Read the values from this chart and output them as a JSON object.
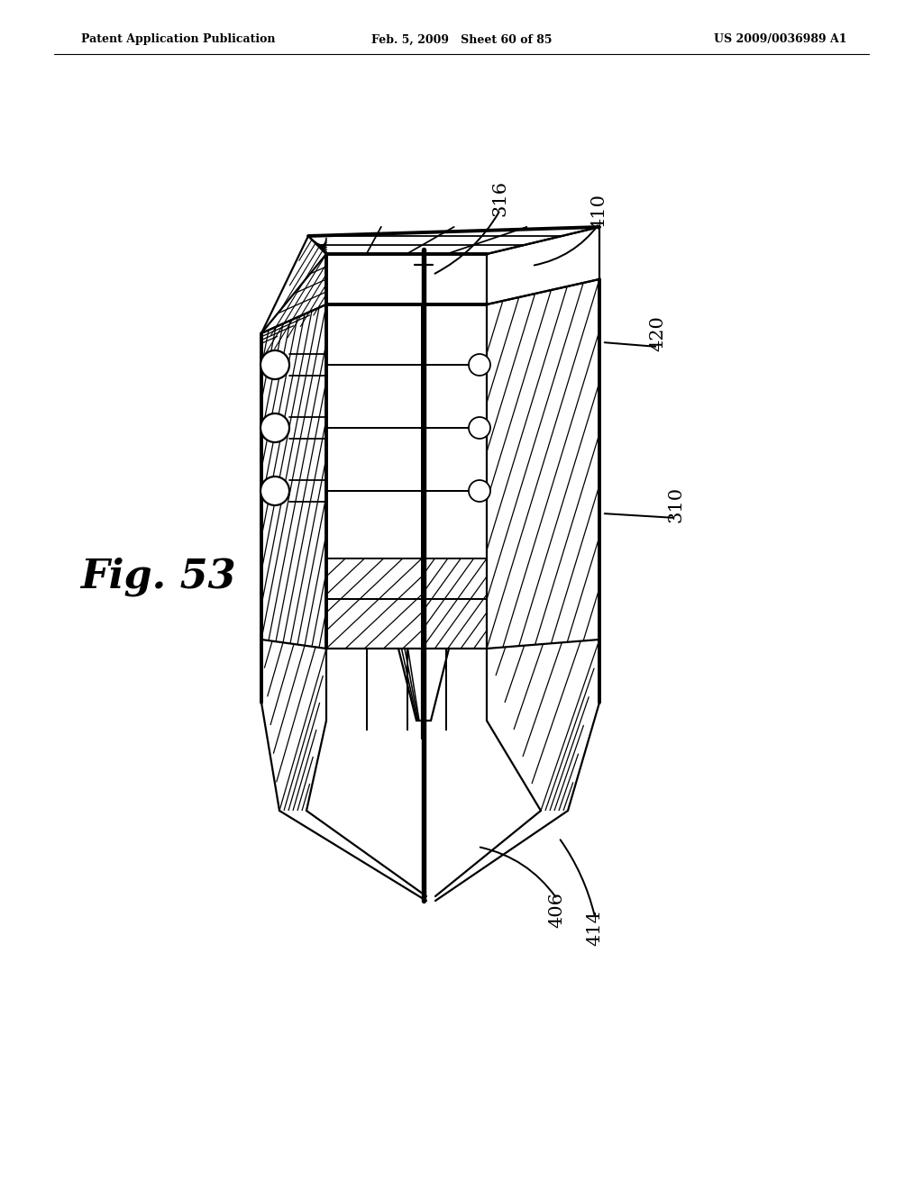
{
  "background_color": "#ffffff",
  "header_left": "Patent Application Publication",
  "header_center": "Feb. 5, 2009   Sheet 60 of 85",
  "header_right": "US 2009/0036989 A1",
  "fig_label": "Fig. 53",
  "line_color": "#000000",
  "lw": 1.6,
  "tlw": 2.8
}
